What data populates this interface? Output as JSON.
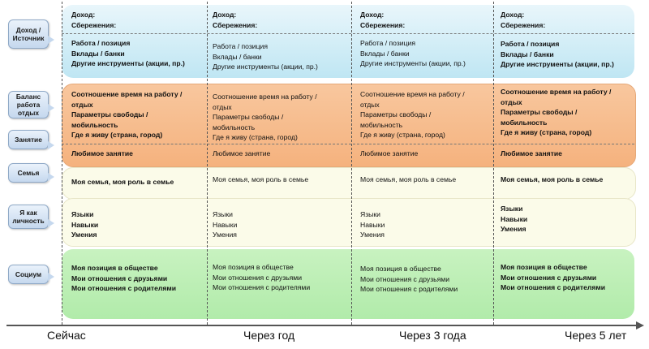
{
  "timeline": {
    "points": [
      "Сейчас",
      "Через год",
      "Через 3 года",
      "Через 5 лет"
    ]
  },
  "labels": {
    "income": "Доход / Источник",
    "balance": "Баланс работа отдых",
    "occupation": "Занятие",
    "family": "Семья",
    "person": "Я как личность",
    "social": "Социум"
  },
  "columns": [
    {
      "income_header": [
        "Доход:",
        "Сбережения:"
      ],
      "income_items": [
        "Работа / позиция",
        "Вклады / банки",
        "Другие инструменты (акции, пр.)"
      ],
      "balance_items": [
        "Соотношение время на работу /",
        "отдых",
        "Параметры свободы /",
        "мобильность",
        "Где я живу (страна, город)"
      ],
      "occupation": "Любимое занятие",
      "family": "Моя семья, моя роль в семье",
      "person_items": [
        "Языки",
        "Навыки",
        "Умения"
      ],
      "social_items": [
        "Моя позиция в обществе",
        "Мои отношения с друзьями",
        "Мои отношения с родителями"
      ]
    },
    {
      "income_header": [
        "Доход:",
        "Сбережения:"
      ],
      "income_items": [
        "Работа / позиция",
        "Вклады / банки",
        "Другие инструменты (акции, пр.)"
      ],
      "balance_items": [
        "Соотношение время на работу /",
        "отдых",
        "Параметры свободы /",
        "мобильность",
        "Где я живу (страна, город)"
      ],
      "occupation": "Любимое занятие",
      "family": "Моя семья, моя роль в семье",
      "person_items": [
        "Языки",
        "Навыки",
        "Умения"
      ],
      "social_items": [
        "Моя позиция в обществе",
        "Мои отношения с друзьями",
        "Мои отношения с родителями"
      ]
    },
    {
      "income_header": [
        "Доход:",
        "Сбережения:"
      ],
      "income_items": [
        "Работа / позиция",
        "Вклады / банки",
        "Другие инструменты (акции, пр.)"
      ],
      "balance_items": [
        "Соотношение время на работу /",
        "отдых",
        "Параметры свободы /",
        "мобильность",
        "Где я живу (страна, город)"
      ],
      "occupation": "Любимое занятие",
      "family": "Моя семья, моя роль в семье",
      "person_items": [
        "Языки",
        "Навыки",
        "Умения"
      ],
      "social_items": [
        "Моя позиция в обществе",
        "Мои отношения с друзьями",
        "Мои отношения с родителями"
      ]
    },
    {
      "income_header": [
        "Доход:",
        "Сбережения:"
      ],
      "income_items": [
        "Работа / позиция",
        "Вклады / банки",
        "Другие инструменты (акции, пр.)"
      ],
      "balance_items": [
        "Соотношение время на работу /",
        "отдых",
        "Параметры свободы /",
        "мобильность",
        "Где я живу (страна, город)"
      ],
      "occupation": "Любимое занятие",
      "family": "Моя семья, моя роль в семье",
      "person_items": [
        "Языки",
        "Навыки",
        "Умения"
      ],
      "social_items": [
        "Моя позиция в обществе",
        "Мои отношения с друзьями",
        "Мои отношения с родителями"
      ]
    }
  ]
}
